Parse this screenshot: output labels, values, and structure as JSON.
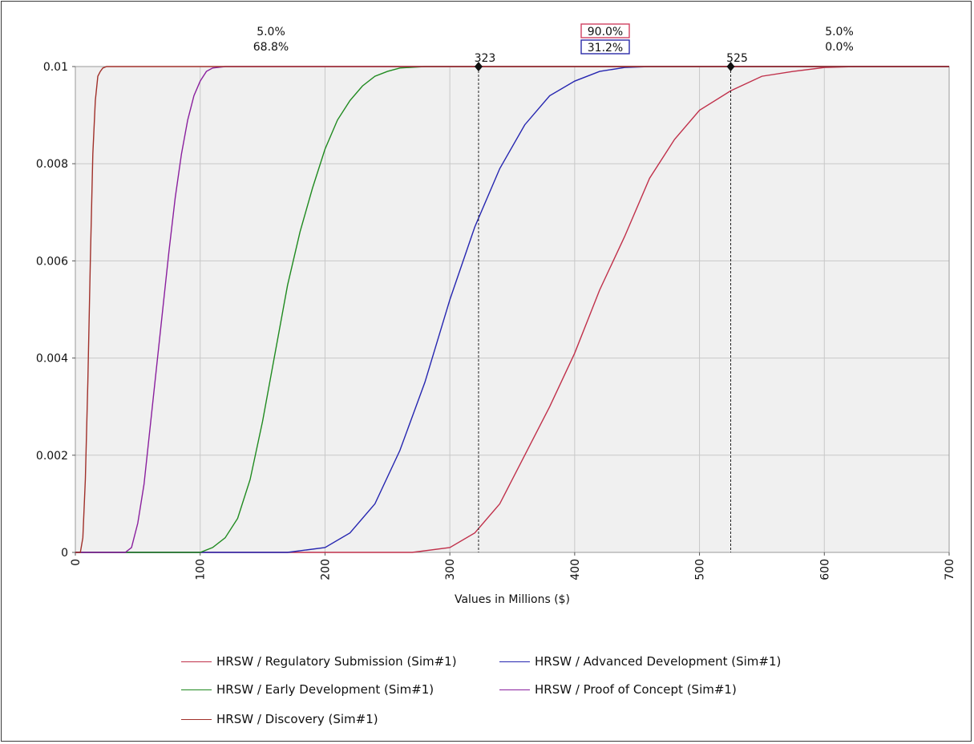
{
  "chart_data": {
    "type": "line",
    "title": "",
    "xlabel": "Values in Millions ($)",
    "ylabel": "",
    "xlim": [
      0,
      700
    ],
    "ylim": [
      0,
      0.01
    ],
    "x_ticks": [
      "0",
      "100",
      "200",
      "300",
      "400",
      "500",
      "600",
      "700"
    ],
    "y_ticks": [
      "0",
      "0.002",
      "0.004",
      "0.006",
      "0.008",
      "0.01"
    ],
    "grid": true,
    "background": "#f0f0f0",
    "legend_position": "bottom",
    "series": [
      {
        "name": "HRSW / Regulatory Submission (Sim#1)",
        "color": "#c0304a",
        "x": [
          270,
          300,
          320,
          340,
          360,
          380,
          400,
          420,
          440,
          460,
          480,
          500,
          525,
          550,
          575,
          600,
          625,
          650
        ],
        "y": [
          0,
          0.0001,
          0.0004,
          0.001,
          0.002,
          0.003,
          0.0041,
          0.0054,
          0.0065,
          0.0077,
          0.0085,
          0.0091,
          0.0095,
          0.0098,
          0.0099,
          0.00998,
          0.01,
          0.01
        ]
      },
      {
        "name": "HRSW / Advanced Development (Sim#1)",
        "color": "#2525b0",
        "x": [
          170,
          200,
          220,
          240,
          260,
          280,
          300,
          320,
          340,
          360,
          380,
          400,
          420,
          440,
          460,
          500
        ],
        "y": [
          0,
          0.0001,
          0.0004,
          0.001,
          0.0021,
          0.0035,
          0.0052,
          0.0067,
          0.0079,
          0.0088,
          0.0094,
          0.0097,
          0.0099,
          0.00998,
          0.01,
          0.01
        ]
      },
      {
        "name": "HRSW / Early  Development (Sim#1)",
        "color": "#1f8a1f",
        "x": [
          100,
          110,
          120,
          130,
          140,
          150,
          160,
          170,
          180,
          190,
          200,
          210,
          220,
          230,
          240,
          250,
          260,
          280,
          300
        ],
        "y": [
          0,
          0.0001,
          0.0003,
          0.0007,
          0.0015,
          0.0027,
          0.0041,
          0.0055,
          0.0066,
          0.0075,
          0.0083,
          0.0089,
          0.0093,
          0.0096,
          0.0098,
          0.0099,
          0.00997,
          0.01,
          0.01
        ]
      },
      {
        "name": "HRSW / Proof of Concept (Sim#1)",
        "color": "#8a1f9e",
        "x": [
          40,
          45,
          50,
          55,
          60,
          65,
          70,
          75,
          80,
          85,
          90,
          95,
          100,
          105,
          110,
          120,
          140
        ],
        "y": [
          0,
          0.0001,
          0.0006,
          0.0014,
          0.0026,
          0.0038,
          0.005,
          0.0062,
          0.0073,
          0.0082,
          0.0089,
          0.0094,
          0.0097,
          0.0099,
          0.00997,
          0.01,
          0.01
        ]
      },
      {
        "name": "HRSW / Discovery (Sim#1)",
        "color": "#a0302a",
        "x": [
          4,
          6,
          8,
          10,
          12,
          14,
          16,
          18,
          20,
          22,
          25,
          30
        ],
        "y": [
          0,
          0.0003,
          0.0015,
          0.0035,
          0.006,
          0.0082,
          0.0093,
          0.0098,
          0.0099,
          0.00997,
          0.01,
          0.01
        ]
      }
    ],
    "markers": [
      {
        "x": 323,
        "label": "323"
      },
      {
        "x": 525,
        "label": "525"
      }
    ],
    "top_percentages": {
      "left": {
        "line1": "5.0%",
        "line2": "68.8%"
      },
      "middle": {
        "line1": "90.0%",
        "line2": "31.2%",
        "box1_color": "#d04060",
        "box2_color": "#2a2aa8"
      },
      "right": {
        "line1": "5.0%",
        "line2": "0.0%"
      }
    }
  },
  "legend": {
    "items": [
      {
        "label": "HRSW / Regulatory Submission (Sim#1)",
        "color": "#c0304a"
      },
      {
        "label": "HRSW / Advanced Development (Sim#1)",
        "color": "#2525b0"
      },
      {
        "label": "HRSW / Early  Development (Sim#1)",
        "color": "#1f8a1f"
      },
      {
        "label": "HRSW / Proof of Concept (Sim#1)",
        "color": "#8a1f9e"
      },
      {
        "label": "HRSW / Discovery (Sim#1)",
        "color": "#a0302a"
      }
    ]
  }
}
